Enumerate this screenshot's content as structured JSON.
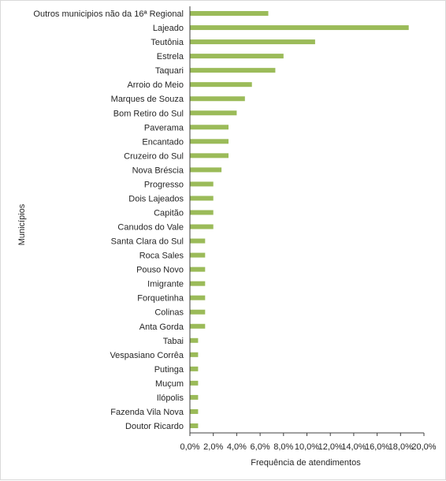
{
  "chart_data": {
    "type": "bar",
    "orientation": "horizontal",
    "xlabel": "Frequência de atendimentos",
    "ylabel": "Municípios",
    "xlim": [
      0,
      20
    ],
    "xticks": [
      0,
      2,
      4,
      6,
      8,
      10,
      12,
      14,
      16,
      18,
      20
    ],
    "xtick_labels": [
      "0,0%",
      "2,0%",
      "4,0%",
      "6,0%",
      "8,0%",
      "10,0%",
      "12,0%",
      "14,0%",
      "16,0%",
      "18,0%",
      "20,0%"
    ],
    "grid": false,
    "legend": "none",
    "bar_color": "#9bbb59",
    "categories": [
      "Outros municipios não da 16ª Regional",
      "Lajeado",
      "Teutônia",
      "Estrela",
      "Taquari",
      "Arroio do Meio",
      "Marques de Souza",
      "Bom Retiro do Sul",
      "Paverama",
      "Encantado",
      "Cruzeiro do Sul",
      "Nova Bréscia",
      "Progresso",
      "Dois Lajeados",
      "Capitão",
      "Canudos do Vale",
      "Santa Clara do Sul",
      "Roca Sales",
      "Pouso Novo",
      "Imigrante",
      "Forquetinha",
      "Colinas",
      "Anta Gorda",
      "Tabai",
      "Vespasiano Corrêa",
      "Putinga",
      "Muçum",
      "Ilópolis",
      "Fazenda Vila Nova",
      "Doutor Ricardo"
    ],
    "values": [
      6.7,
      18.7,
      10.7,
      8.0,
      7.3,
      5.3,
      4.7,
      4.0,
      3.3,
      3.3,
      3.3,
      2.7,
      2.0,
      2.0,
      2.0,
      2.0,
      1.3,
      1.3,
      1.3,
      1.3,
      1.3,
      1.3,
      1.3,
      0.7,
      0.7,
      0.7,
      0.7,
      0.7,
      0.7,
      0.7
    ]
  }
}
